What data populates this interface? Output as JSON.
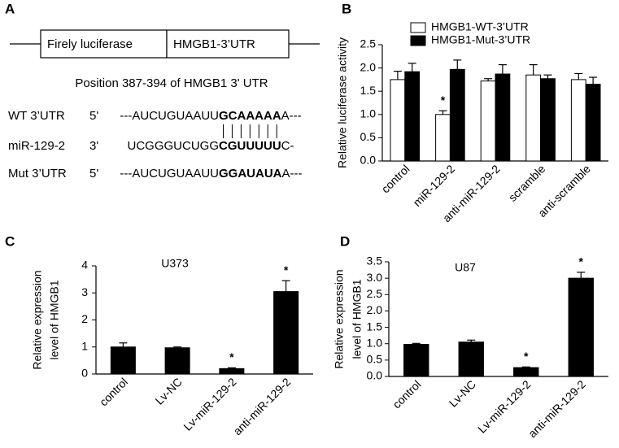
{
  "diagram": {
    "panel": "A",
    "boxes": [
      "Firely luciferase",
      "HMGB1-3’UTR"
    ],
    "title": "Position 387-394 of HMGB1 3' UTR",
    "rows": [
      {
        "name": "WT 3’UTR",
        "end": "5'",
        "prefix": "---AUCUGUAAUU",
        "bold": "GCAAAAA",
        "suffix": "A---"
      },
      {
        "name": "miR-129-2",
        "end": "3'",
        "prefix": "UCGGGUCUGG",
        "bold": "CGUUUUU",
        "suffix": "C-"
      },
      {
        "name": "Mut 3’UTR",
        "end": "5'",
        "prefix": "---AUCUGUAAUU",
        "bold": "GGAUAUA",
        "suffix": "A---"
      }
    ]
  },
  "chart_data": [
    {
      "type": "bar",
      "panel": "B",
      "ylabel": [
        "Relative luciferase activity"
      ],
      "categories": [
        "control",
        "miR-129-2",
        "anti-miR-129-2",
        "scramble",
        "anti-scramble"
      ],
      "series": [
        {
          "name": "HMGB1-WT-3’UTR",
          "color": "#ffffff",
          "values": [
            1.75,
            1.0,
            1.72,
            1.85,
            1.75
          ],
          "errors": [
            0.18,
            0.08,
            0.05,
            0.22,
            0.13
          ]
        },
        {
          "name": "HMGB1-Mut-3’UTR",
          "color": "#000000",
          "values": [
            1.92,
            1.97,
            1.87,
            1.77,
            1.65
          ],
          "errors": [
            0.18,
            0.2,
            0.2,
            0.08,
            0.15
          ]
        }
      ],
      "ylim": [
        0,
        2.5
      ],
      "yticks": [
        {
          "value": 0,
          "label": "0.0"
        },
        0.5,
        {
          "value": 1,
          "label": "1.0"
        },
        1.5,
        {
          "value": 2,
          "label": "2.0"
        },
        2.5
      ],
      "annotations": [
        {
          "text": "*",
          "index": 1,
          "series": 0
        }
      ],
      "legend": "top"
    },
    {
      "type": "bar",
      "panel": "C",
      "title": "U373",
      "ylabel": [
        "Relative expression",
        "level of HMGB1"
      ],
      "categories": [
        "control",
        "Lv-NC",
        "Lv-miR-129-2",
        "anti-miR-129-2"
      ],
      "series": [
        {
          "color": "#000000",
          "values": [
            1.0,
            0.97,
            0.2,
            3.05
          ],
          "errors": [
            0.15,
            0.03,
            0.03,
            0.4
          ]
        }
      ],
      "ylim": [
        0,
        4
      ],
      "yticks": [
        0,
        1,
        2,
        3,
        4
      ],
      "annotations": [
        {
          "text": "*",
          "index": 2,
          "series": 0
        },
        {
          "text": "*",
          "index": 3,
          "series": 0
        }
      ]
    },
    {
      "type": "bar",
      "panel": "D",
      "title": "U87",
      "ylabel": [
        "Relative expression",
        "level of HMGB1"
      ],
      "categories": [
        "control",
        "Lv-NC",
        "Lv-miR-129-2",
        "anti-miR-129-2"
      ],
      "series": [
        {
          "color": "#000000",
          "values": [
            0.98,
            1.05,
            0.27,
            3.0
          ],
          "errors": [
            0.03,
            0.06,
            0.02,
            0.18
          ]
        }
      ],
      "ylim": [
        0,
        3.5
      ],
      "yticks": [
        {
          "value": 0,
          "label": "0.0"
        },
        0.5,
        {
          "value": 1,
          "label": "1.0"
        },
        1.5,
        {
          "value": 2,
          "label": "2.0"
        },
        2.5,
        {
          "value": 3,
          "label": "3.0"
        },
        3.5
      ],
      "annotations": [
        {
          "text": "*",
          "index": 2,
          "series": 0
        },
        {
          "text": "*",
          "index": 3,
          "series": 0
        }
      ]
    }
  ]
}
